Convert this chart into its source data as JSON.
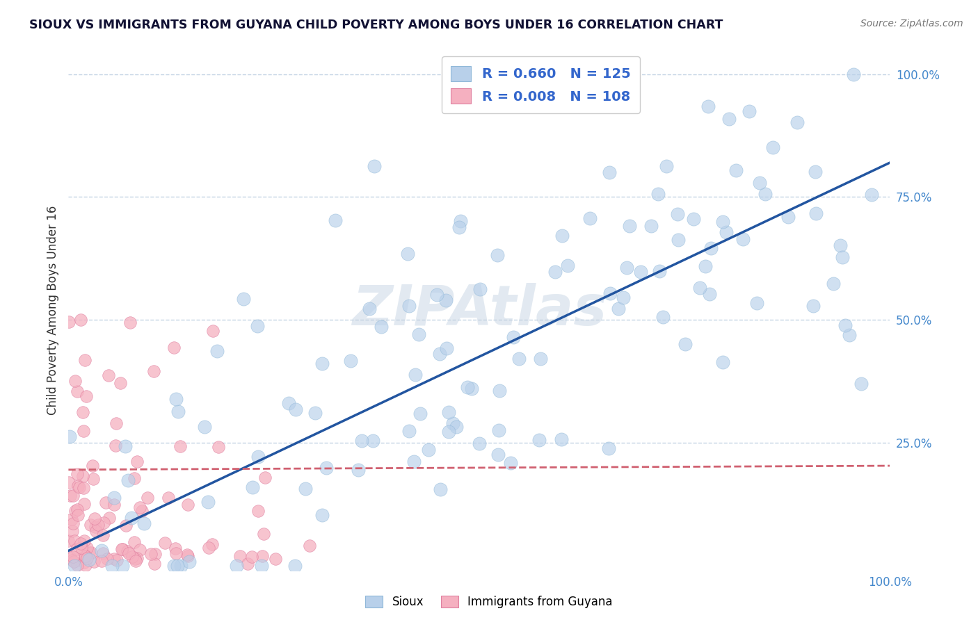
{
  "title": "SIOUX VS IMMIGRANTS FROM GUYANA CHILD POVERTY AMONG BOYS UNDER 16 CORRELATION CHART",
  "source": "Source: ZipAtlas.com",
  "ylabel": "Child Poverty Among Boys Under 16",
  "watermark": "ZIPAtlas",
  "sioux_R": 0.66,
  "sioux_N": 125,
  "guyana_R": 0.008,
  "guyana_N": 108,
  "sioux_color": "#b8d0ea",
  "sioux_edge_color": "#90b8d8",
  "sioux_line_color": "#2255a0",
  "guyana_color": "#f5b0c0",
  "guyana_edge_color": "#e080a0",
  "guyana_line_color": "#d06070",
  "legend_text_color": "#3366cc",
  "axis_tick_color": "#4488cc",
  "grid_color": "#c5d5e5",
  "background_color": "#ffffff",
  "xlim": [
    0.0,
    1.0
  ],
  "ylim": [
    0.0,
    1.05
  ],
  "ytick_positions": [
    0.25,
    0.5,
    0.75,
    1.0
  ],
  "ytick_labels": [
    "25.0%",
    "50.0%",
    "75.0%",
    "100.0%"
  ],
  "xtick_positions": [
    0.0,
    1.0
  ],
  "xtick_labels": [
    "0.0%",
    "100.0%"
  ],
  "sioux_line_intercept": 0.03,
  "sioux_line_slope": 0.79,
  "guyana_line_intercept": 0.195,
  "guyana_line_slope": 0.008
}
